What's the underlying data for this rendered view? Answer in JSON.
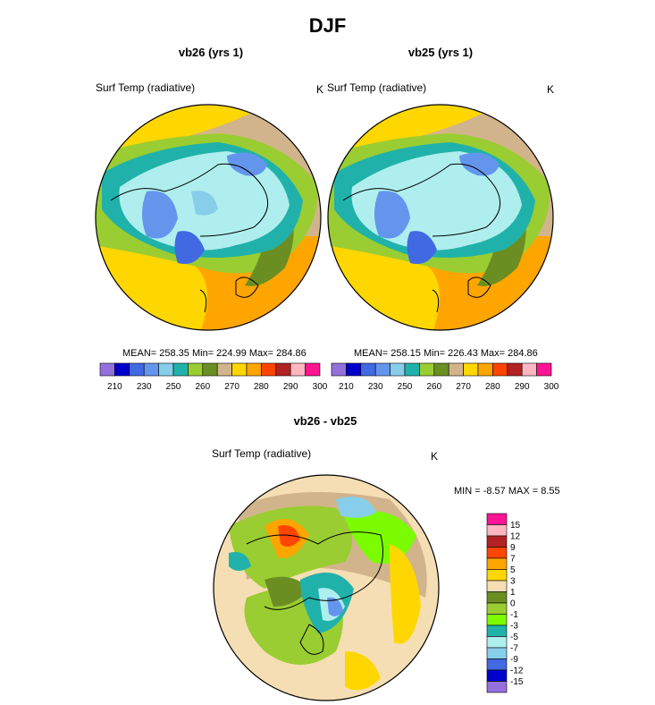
{
  "title": "DJF",
  "chart_data": [
    {
      "type": "heatmap",
      "title": "vb26 (yrs 1)",
      "variable": "Surf Temp (radiative)",
      "units": "K",
      "stats": "MEAN= 258.35  Min= 224.99  Max= 284.86",
      "colorbar": {
        "orientation": "horizontal",
        "colors": [
          "#9370DB",
          "#0000CD",
          "#4169E1",
          "#6495ED",
          "#87CEEB",
          "#20B2AA",
          "#9ACD32",
          "#6B8E23",
          "#D2B48C",
          "#FFD700",
          "#FFA500",
          "#FF4500",
          "#B22222",
          "#FFB6C1",
          "#FF1493"
        ],
        "labels": [
          "210",
          "230",
          "250",
          "260",
          "270",
          "280",
          "290",
          "300"
        ]
      }
    },
    {
      "type": "heatmap",
      "title": "vb25 (yrs 1)",
      "variable": "Surf Temp (radiative)",
      "units": "K",
      "stats": "MEAN= 258.15  Min= 226.43  Max= 284.86",
      "colorbar": {
        "orientation": "horizontal",
        "colors": [
          "#9370DB",
          "#0000CD",
          "#4169E1",
          "#6495ED",
          "#87CEEB",
          "#20B2AA",
          "#9ACD32",
          "#6B8E23",
          "#D2B48C",
          "#FFD700",
          "#FFA500",
          "#FF4500",
          "#B22222",
          "#FFB6C1",
          "#FF1493"
        ],
        "labels": [
          "210",
          "230",
          "250",
          "260",
          "270",
          "280",
          "290",
          "300"
        ]
      }
    },
    {
      "type": "heatmap",
      "title": "vb26 - vb25",
      "variable": "Surf Temp (radiative)",
      "units": "K",
      "stats": "MIN =  -8.57 MAX =   8.55",
      "colorbar": {
        "orientation": "vertical",
        "colors": [
          "#FF1493",
          "#FFB6C1",
          "#B22222",
          "#FF4500",
          "#FFA500",
          "#FFD700",
          "#F5DEB3",
          "#6B8E23",
          "#9ACD32",
          "#7CFC00",
          "#20B2AA",
          "#AFEEEE",
          "#87CEEB",
          "#4169E1",
          "#0000CD",
          "#9370DB"
        ],
        "labels": [
          "15",
          "12",
          "9",
          "7",
          "5",
          "3",
          "1",
          "0",
          "-1",
          "-3",
          "-5",
          "-7",
          "-9",
          "-12",
          "-15"
        ]
      }
    }
  ]
}
